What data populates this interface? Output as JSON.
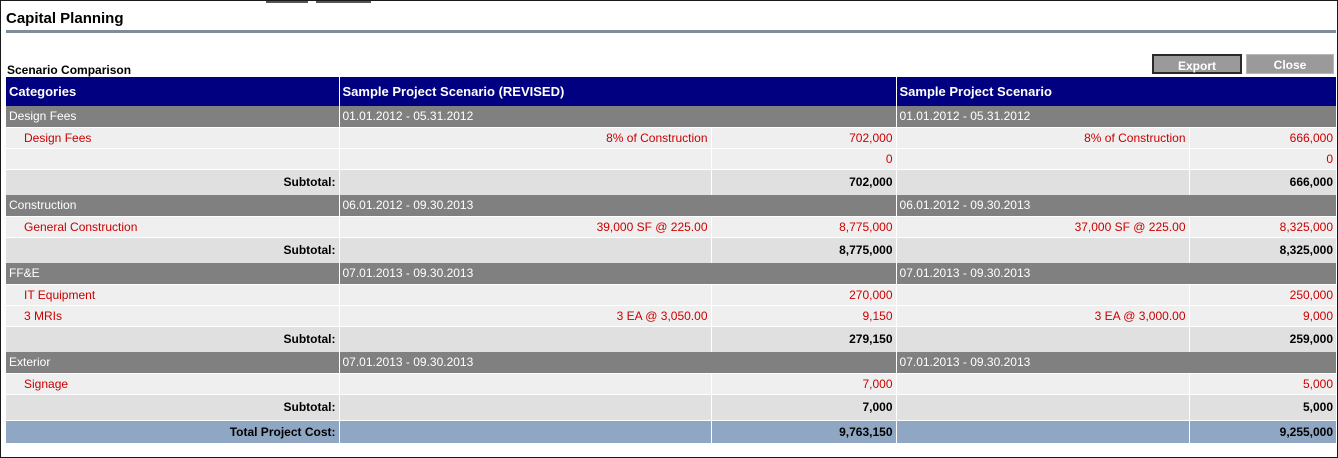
{
  "app_title": "Capital Planning",
  "section_title": "Scenario Comparison",
  "buttons": {
    "export": "Export",
    "close": "Close"
  },
  "columns": {
    "categories": "Categories",
    "scenario_a": "Sample Project Scenario (REVISED)",
    "scenario_b": "Sample Project Scenario"
  },
  "groups": [
    {
      "name": "Design Fees",
      "dates_a": "01.01.2012 - 05.31.2012",
      "dates_b": "01.01.2012 - 05.31.2012",
      "items": [
        {
          "name": "Design Fees",
          "basis_a": "8% of Construction",
          "amount_a": "702,000",
          "basis_b": "8% of Construction",
          "amount_b": "666,000"
        },
        {
          "name": "",
          "basis_a": "",
          "amount_a": "0",
          "basis_b": "",
          "amount_b": "0"
        }
      ],
      "subtotal_label": "Subtotal:",
      "subtotal_a": "702,000",
      "subtotal_b": "666,000"
    },
    {
      "name": "Construction",
      "dates_a": "06.01.2012 - 09.30.2013",
      "dates_b": "06.01.2012 - 09.30.2013",
      "items": [
        {
          "name": "General Construction",
          "basis_a": "39,000 SF @ 225.00",
          "amount_a": "8,775,000",
          "basis_b": "37,000 SF @ 225.00",
          "amount_b": "8,325,000"
        }
      ],
      "subtotal_label": "Subtotal:",
      "subtotal_a": "8,775,000",
      "subtotal_b": "8,325,000"
    },
    {
      "name": "FF&E",
      "dates_a": "07.01.2013 - 09.30.2013",
      "dates_b": "07.01.2013 - 09.30.2013",
      "items": [
        {
          "name": "IT Equipment",
          "basis_a": "",
          "amount_a": "270,000",
          "basis_b": "",
          "amount_b": "250,000"
        },
        {
          "name": "3 MRIs",
          "basis_a": "3 EA @ 3,050.00",
          "amount_a": "9,150",
          "basis_b": "3 EA @ 3,000.00",
          "amount_b": "9,000"
        }
      ],
      "subtotal_label": "Subtotal:",
      "subtotal_a": "279,150",
      "subtotal_b": "259,000"
    },
    {
      "name": "Exterior",
      "dates_a": "07.01.2013 - 09.30.2013",
      "dates_b": "07.01.2013 - 09.30.2013",
      "items": [
        {
          "name": "Signage",
          "basis_a": "",
          "amount_a": "7,000",
          "basis_b": "",
          "amount_b": "5,000"
        }
      ],
      "subtotal_label": "Subtotal:",
      "subtotal_a": "7,000",
      "subtotal_b": "5,000"
    }
  ],
  "total": {
    "label": "Total Project Cost:",
    "amount_a": "9,763,150",
    "amount_b": "9,255,000"
  },
  "colors": {
    "header_bg": "#000080",
    "category_bg": "#808080",
    "line_bg": "#efefef",
    "line_text": "#cc0000",
    "subtotal_bg": "#e0e0e0",
    "total_bg": "#8fa7c2",
    "button_bg": "#9a9a9a"
  }
}
